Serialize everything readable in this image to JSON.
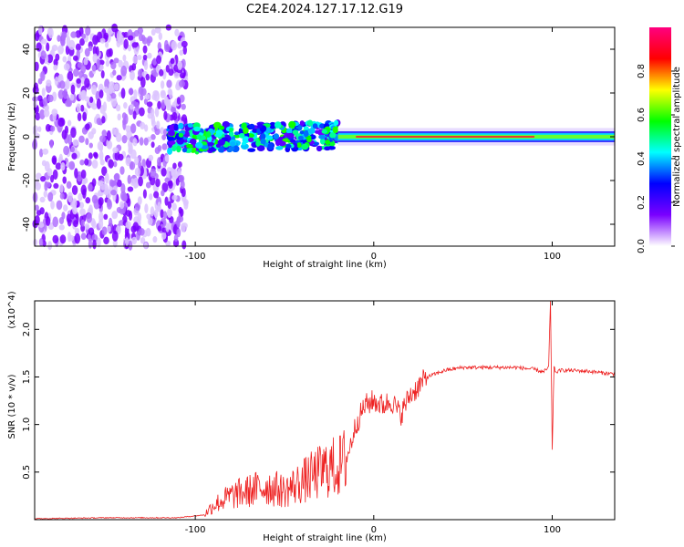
{
  "title": "C2E4.2024.127.17.12.G19",
  "chart_data": [
    {
      "type": "heatmap",
      "xlabel": "Height of straight line (km)",
      "ylabel": "Frequency (Hz)",
      "xlim": [
        -190,
        135
      ],
      "ylim": [
        -50,
        50
      ],
      "x_ticks": [
        -100,
        0,
        100
      ],
      "x_tick_labels": [
        "-100",
        "0",
        "100"
      ],
      "y_ticks": [
        -40,
        -20,
        0,
        20,
        40
      ],
      "y_tick_labels": [
        "-40",
        "-20",
        "0",
        "20",
        "40"
      ],
      "grid": false,
      "colorbar": {
        "label": "Normalized spectral amplitude",
        "range": [
          0,
          1
        ],
        "ticks": [
          0.0,
          0.2,
          0.4,
          0.6,
          0.8
        ],
        "tick_labels": [
          "0.0",
          "0.2",
          "0.4",
          "0.6",
          "0.8"
        ],
        "colors": [
          "#ffffff",
          "#7a00ff",
          "#0000ff",
          "#00ffff",
          "#00ff00",
          "#ffff00",
          "#ff0000",
          "#ff0080"
        ]
      },
      "regions": [
        {
          "x_range": [
            -190,
            -105
          ],
          "freq_range": [
            -50,
            50
          ],
          "amplitude": 0.05
        },
        {
          "x_range": [
            -115,
            -20
          ],
          "freq_range": [
            -10,
            12
          ],
          "amplitude": 0.35
        },
        {
          "x_range": [
            -20,
            135
          ],
          "freq_range": [
            -3,
            3
          ],
          "amplitude": 0.75
        }
      ]
    },
    {
      "type": "line",
      "xlabel": "Height of straight line (km)",
      "ylabel": "SNR (10 * v/v)",
      "y_multiplier": "(x10^4)",
      "xlim": [
        -190,
        135
      ],
      "ylim": [
        0,
        2.3
      ],
      "x_ticks": [
        -100,
        0,
        100
      ],
      "x_tick_labels": [
        "-100",
        "0",
        "100"
      ],
      "y_ticks": [
        0.5,
        1.0,
        1.5,
        2.0
      ],
      "y_tick_labels": [
        "0.5",
        "1.0",
        "1.5",
        "2.0"
      ],
      "grid": false,
      "series": [
        {
          "color": "#ee2222",
          "x": [
            -190,
            -150,
            -110,
            -95,
            -90,
            -80,
            -70,
            -60,
            -50,
            -40,
            -30,
            -25,
            -20,
            -15,
            -10,
            -5,
            0,
            5,
            10,
            15,
            20,
            25,
            30,
            40,
            50,
            60,
            70,
            80,
            90,
            95,
            98,
            99,
            100,
            101,
            102,
            105,
            110,
            120,
            135
          ],
          "y": [
            0.01,
            0.02,
            0.02,
            0.05,
            0.15,
            0.25,
            0.3,
            0.35,
            0.3,
            0.4,
            0.5,
            0.55,
            0.55,
            0.65,
            1.0,
            1.2,
            1.25,
            1.2,
            1.25,
            1.1,
            1.3,
            1.4,
            1.5,
            1.57,
            1.6,
            1.6,
            1.6,
            1.6,
            1.58,
            1.55,
            1.6,
            2.3,
            0.75,
            1.6,
            1.55,
            1.57,
            1.57,
            1.56,
            1.53
          ]
        }
      ]
    }
  ]
}
